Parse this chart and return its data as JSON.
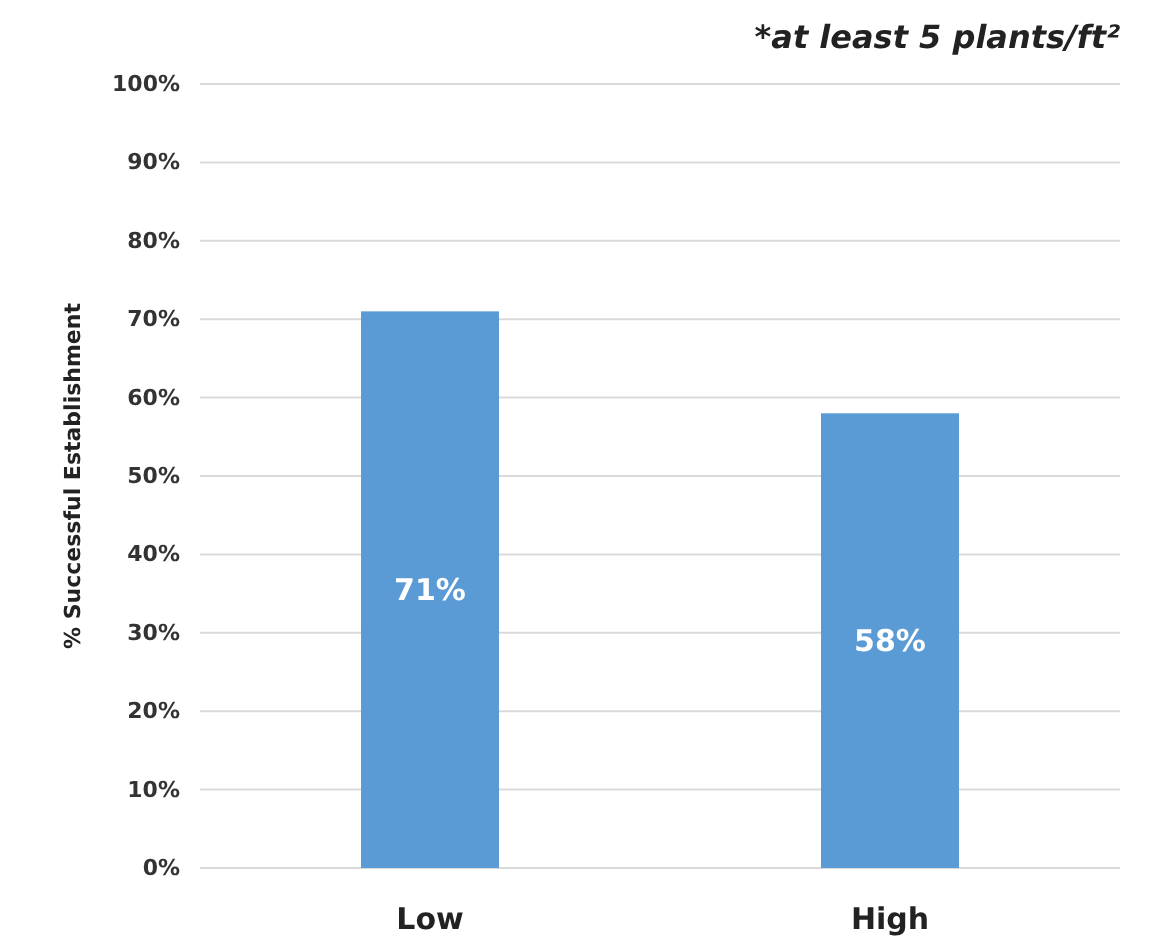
{
  "chart_data": {
    "type": "bar",
    "title": "*at least 5 plants/ft²",
    "ylabel": "% Successful Establishment",
    "categories": [
      "Low",
      "High"
    ],
    "values": [
      71,
      58
    ],
    "value_labels": [
      "71%",
      "58%"
    ],
    "color": "#5b9bd5",
    "ylim": [
      0,
      100
    ],
    "yticks": [
      {
        "value": 0,
        "label": "0%"
      },
      {
        "value": 10,
        "label": "10%"
      },
      {
        "value": 20,
        "label": "20%"
      },
      {
        "value": 30,
        "label": "30%"
      },
      {
        "value": 40,
        "label": "40%"
      },
      {
        "value": 50,
        "label": "50%"
      },
      {
        "value": 60,
        "label": "60%"
      },
      {
        "value": 70,
        "label": "70%"
      },
      {
        "value": 80,
        "label": "80%"
      },
      {
        "value": 90,
        "label": "90%"
      },
      {
        "value": 100,
        "label": "100%"
      }
    ],
    "grid": "y"
  }
}
